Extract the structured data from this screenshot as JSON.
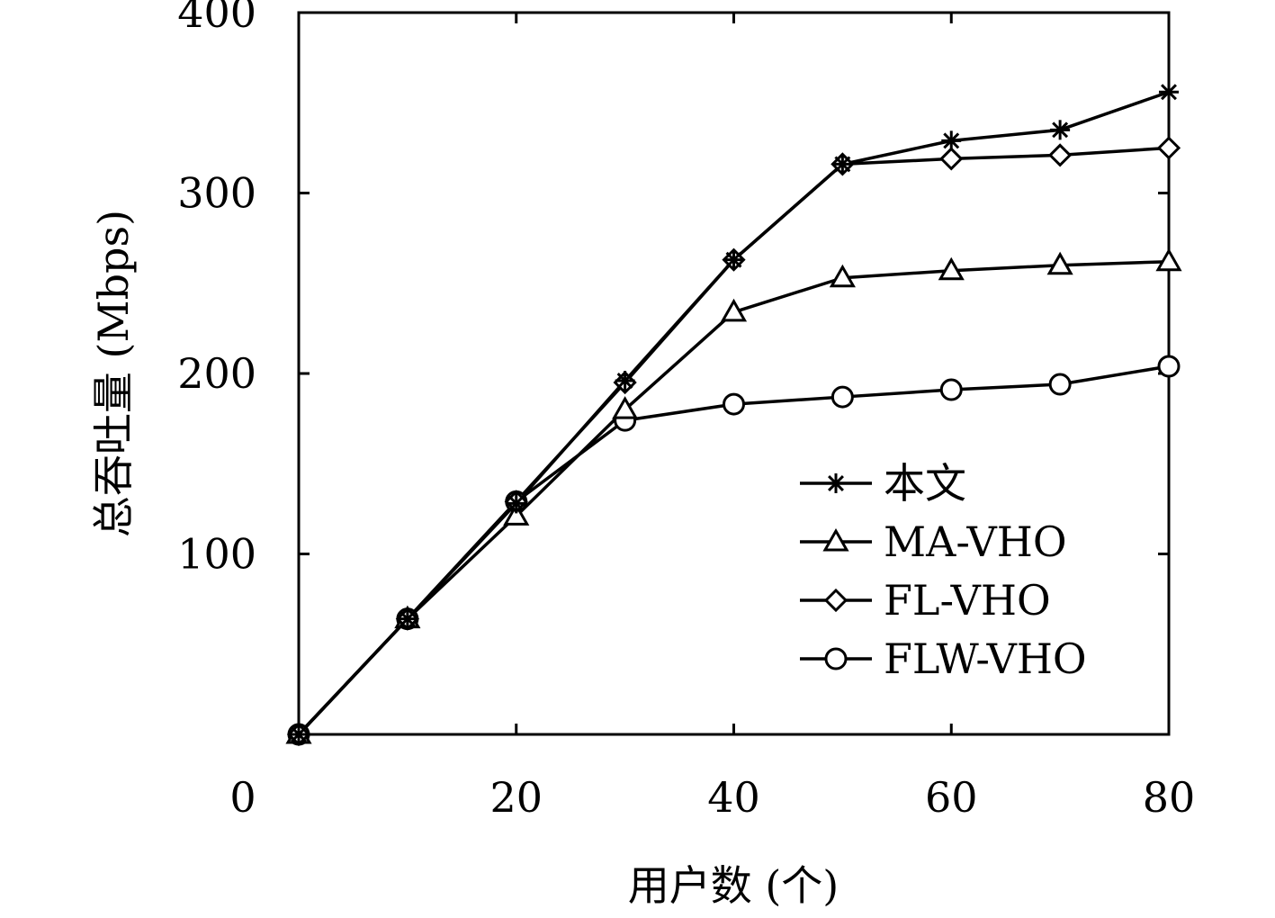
{
  "chart_data": {
    "type": "line",
    "title": "",
    "xlabel": "用户数 (个)",
    "ylabel": "总吞吐量 (Mbps)",
    "xlim": [
      0,
      80
    ],
    "ylim": [
      0,
      400
    ],
    "x_ticks": [
      0,
      20,
      40,
      60,
      80
    ],
    "y_ticks": [
      100,
      200,
      300,
      400
    ],
    "x_tick_labels": [
      "0",
      "20",
      "40",
      "60",
      "80"
    ],
    "y_tick_labels": [
      "100",
      "200",
      "300",
      "400"
    ],
    "grid": false,
    "legend_position": "lower-right",
    "x": [
      0,
      10,
      20,
      30,
      40,
      50,
      60,
      70,
      80
    ],
    "series": [
      {
        "name": "本文",
        "marker": "star",
        "values": [
          0,
          64,
          128,
          196,
          263,
          316,
          329,
          335,
          356
        ]
      },
      {
        "name": "MA-VHO",
        "marker": "triangle",
        "values": [
          0,
          64,
          121,
          180,
          234,
          253,
          257,
          260,
          262
        ]
      },
      {
        "name": "FL-VHO",
        "marker": "diamond",
        "values": [
          0,
          64,
          129,
          195,
          263,
          316,
          319,
          321,
          325
        ]
      },
      {
        "name": "FLW-VHO",
        "marker": "circle",
        "values": [
          0,
          64,
          129,
          174,
          183,
          187,
          191,
          194,
          204
        ]
      }
    ],
    "line_color": "#000000"
  }
}
